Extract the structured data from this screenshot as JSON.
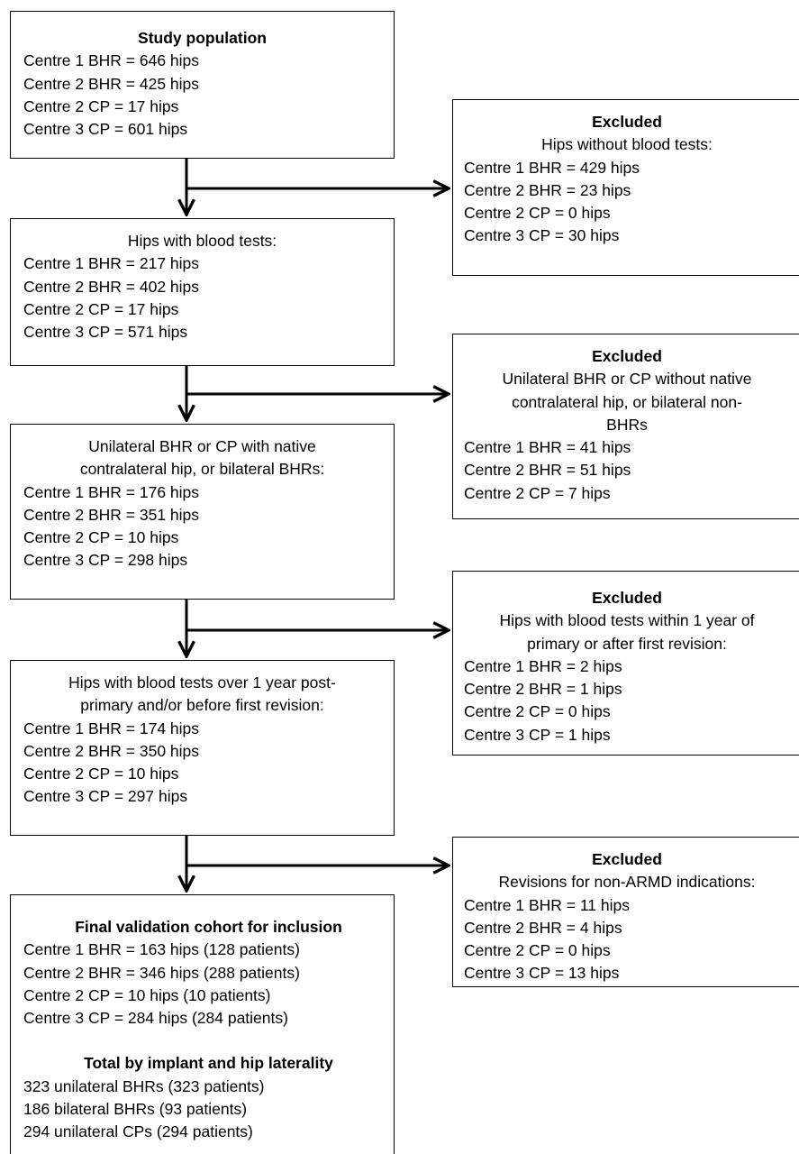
{
  "flow_boxes": {
    "study_population": {
      "title": "Study population",
      "lines": [
        "Centre 1 BHR = 646 hips",
        "Centre 2 BHR = 425 hips",
        "Centre 2 CP = 17 hips",
        "Centre 3 CP = 601 hips"
      ]
    },
    "blood_tests": {
      "title": "Hips with blood tests:",
      "lines": [
        "Centre 1 BHR = 217 hips",
        "Centre 2 BHR = 402 hips",
        "Centre 2 CP = 17 hips",
        "Centre 3 CP = 571 hips"
      ]
    },
    "native_contralateral": {
      "title_line1": "Unilateral BHR or CP with native",
      "title_line2": "contralateral hip, or bilateral BHRs:",
      "lines": [
        "Centre 1 BHR = 176 hips",
        "Centre 2 BHR = 351 hips",
        "Centre 2 CP = 10 hips",
        "Centre 3 CP = 298 hips"
      ]
    },
    "over_one_year": {
      "title_line1": "Hips with blood tests over 1 year post-",
      "title_line2": "primary and/or before first revision:",
      "lines": [
        "Centre 1 BHR = 174 hips",
        "Centre 2 BHR = 350 hips",
        "Centre 2 CP = 10 hips",
        "Centre 3 CP = 297 hips"
      ]
    },
    "final_cohort": {
      "title": "Final validation cohort for inclusion",
      "lines": [
        "Centre 1 BHR = 163 hips (128 patients)",
        "Centre 2 BHR = 346 hips (288 patients)",
        "Centre 2 CP = 10 hips (10 patients)",
        "Centre 3 CP = 284 hips (284 patients)"
      ],
      "subtitle": "Total by implant and hip laterality",
      "totals": [
        "323 unilateral BHRs (323 patients)",
        "186 bilateral BHRs (93 patients)",
        "294 unilateral CPs (294 patients)"
      ]
    }
  },
  "excluded_boxes": {
    "no_blood_tests": {
      "title": "Excluded",
      "subtitle": "Hips without blood tests:",
      "lines": [
        "Centre 1 BHR = 429 hips",
        "Centre 2 BHR = 23 hips",
        "Centre 2 CP = 0 hips",
        "Centre 3 CP = 30 hips"
      ]
    },
    "no_native_contralateral": {
      "title": "Excluded",
      "subtitle_line1": "Unilateral BHR or CP without native",
      "subtitle_line2": "contralateral hip, or bilateral non-",
      "subtitle_line3": "BHRs",
      "lines": [
        "Centre 1 BHR = 41 hips",
        "Centre 2 BHR = 51 hips",
        "Centre 2 CP = 7 hips"
      ]
    },
    "within_one_year": {
      "title": "Excluded",
      "subtitle_line1": "Hips with blood tests within 1 year of",
      "subtitle_line2": "primary or after first revision:",
      "lines": [
        "Centre 1 BHR = 2 hips",
        "Centre 2 BHR = 1 hips",
        "Centre 2 CP = 0 hips",
        "Centre 3 CP = 1 hips"
      ]
    },
    "non_armd_revisions": {
      "title": "Excluded",
      "subtitle": "Revisions for non-ARMD indications:",
      "lines": [
        "Centre 1 BHR = 11 hips",
        "Centre 2 BHR = 4 hips",
        "Centre 2 CP = 0 hips",
        "Centre 3 CP = 13 hips"
      ]
    }
  }
}
